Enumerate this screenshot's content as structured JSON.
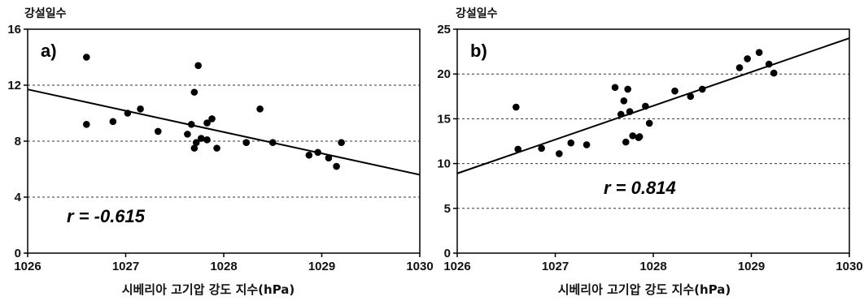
{
  "chart_data": [
    {
      "type": "scatter",
      "panel_label": "a)",
      "ylabel": "강설일수",
      "xlabel": "시베리아 고기압 강도 지수(hPa)",
      "xlim": [
        1026,
        1030
      ],
      "ylim": [
        0,
        16
      ],
      "xticks": [
        "1026",
        "1027",
        "1028",
        "1029",
        "1030"
      ],
      "yticks": [
        "0",
        "4",
        "8",
        "12",
        "16"
      ],
      "grid_y": [
        4,
        8,
        12
      ],
      "r_label": "r =  -0.615",
      "trendline": [
        [
          1026,
          11.7
        ],
        [
          1030,
          5.6
        ]
      ],
      "points": [
        [
          1026.6,
          14.0
        ],
        [
          1026.6,
          9.2
        ],
        [
          1026.87,
          9.4
        ],
        [
          1027.02,
          10.0
        ],
        [
          1027.15,
          10.3
        ],
        [
          1027.33,
          8.7
        ],
        [
          1027.63,
          8.5
        ],
        [
          1027.67,
          9.2
        ],
        [
          1027.7,
          11.5
        ],
        [
          1027.74,
          13.4
        ],
        [
          1027.72,
          7.9
        ],
        [
          1027.7,
          7.5
        ],
        [
          1027.77,
          8.2
        ],
        [
          1027.83,
          9.3
        ],
        [
          1027.83,
          8.1
        ],
        [
          1027.88,
          9.6
        ],
        [
          1027.93,
          7.5
        ],
        [
          1028.23,
          7.9
        ],
        [
          1028.37,
          10.3
        ],
        [
          1028.5,
          7.9
        ],
        [
          1028.87,
          7.0
        ],
        [
          1028.96,
          7.2
        ],
        [
          1029.07,
          6.8
        ],
        [
          1029.15,
          6.2
        ],
        [
          1029.2,
          7.9
        ]
      ]
    },
    {
      "type": "scatter",
      "panel_label": "b)",
      "ylabel": "강설일수",
      "xlabel": "시베리아 고기압 강도 지수(hPa)",
      "xlim": [
        1026,
        1030
      ],
      "ylim": [
        0,
        25
      ],
      "xticks": [
        "1026",
        "1027",
        "1028",
        "1029",
        "1030"
      ],
      "yticks": [
        "0",
        "5",
        "10",
        "15",
        "20",
        "25"
      ],
      "grid_y": [
        5,
        10,
        15,
        20
      ],
      "r_label": "r = 0.814",
      "trendline": [
        [
          1026,
          8.9
        ],
        [
          1030,
          24.0
        ]
      ],
      "points": [
        [
          1026.6,
          16.3
        ],
        [
          1026.62,
          11.6
        ],
        [
          1026.86,
          11.7
        ],
        [
          1027.04,
          11.1
        ],
        [
          1027.16,
          12.3
        ],
        [
          1027.32,
          12.1
        ],
        [
          1027.61,
          18.5
        ],
        [
          1027.67,
          15.5
        ],
        [
          1027.7,
          17.0
        ],
        [
          1027.72,
          12.4
        ],
        [
          1027.74,
          18.3
        ],
        [
          1027.76,
          15.8
        ],
        [
          1027.79,
          13.1
        ],
        [
          1027.85,
          12.9
        ],
        [
          1027.86,
          13.0
        ],
        [
          1027.92,
          16.4
        ],
        [
          1027.96,
          14.5
        ],
        [
          1028.22,
          18.1
        ],
        [
          1028.38,
          17.5
        ],
        [
          1028.5,
          18.3
        ],
        [
          1028.88,
          20.7
        ],
        [
          1028.96,
          21.7
        ],
        [
          1029.08,
          22.4
        ],
        [
          1029.18,
          21.1
        ],
        [
          1029.23,
          20.1
        ]
      ]
    }
  ]
}
